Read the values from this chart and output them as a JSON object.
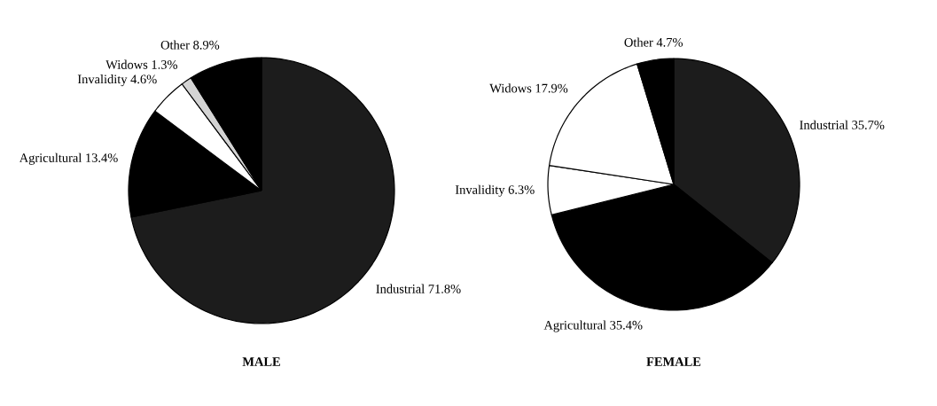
{
  "chart_data": [
    {
      "type": "pie",
      "title": "MALE",
      "categories": [
        "Industrial",
        "Agricultural",
        "Invalidity",
        "Widows",
        "Other"
      ],
      "values": [
        71.8,
        13.4,
        4.6,
        1.3,
        8.9
      ],
      "value_labels": [
        "71.8%",
        "13.4%",
        "4.6%",
        "1.3%",
        "8.9%"
      ],
      "colors": [
        "#1c1c1c",
        "#000000",
        "#ffffff",
        "#d4d4d4",
        "#000000"
      ]
    },
    {
      "type": "pie",
      "title": "FEMALE",
      "categories": [
        "Industrial",
        "Agricultural",
        "Invalidity",
        "Widows",
        "Other"
      ],
      "values": [
        35.7,
        35.4,
        6.3,
        17.9,
        4.7
      ],
      "value_labels": [
        "35.7%",
        "35.4%",
        "6.3%",
        "17.9%",
        "4.7%"
      ],
      "colors": [
        "#1c1c1c",
        "#000000",
        "#ffffff",
        "#ffffff",
        "#000000"
      ]
    }
  ]
}
